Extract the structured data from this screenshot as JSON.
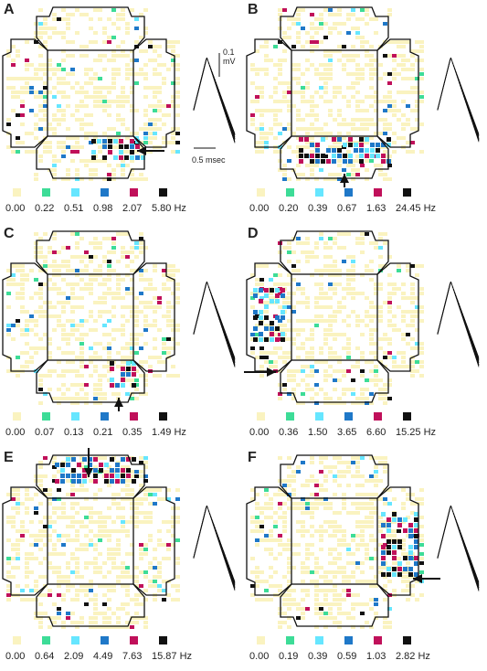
{
  "colors": {
    "bin0": "#faf3c0",
    "bin1": "#3ddc97",
    "bin2": "#66e6ff",
    "bin3": "#1f78c8",
    "bin4": "#c0105a",
    "bin5": "#111111"
  },
  "scalebars": {
    "voltage": "0.1\nmV",
    "time": "0.5 msec"
  },
  "panels": [
    {
      "label": "A",
      "unit": "Hz",
      "values": [
        "0.00",
        "0.22",
        "0.51",
        "0.98",
        "2.07",
        "5.80"
      ],
      "arrow": "left-bottom-right"
    },
    {
      "label": "B",
      "unit": "Hz",
      "values": [
        "0.00",
        "0.20",
        "0.39",
        "0.67",
        "1.63",
        "24.45"
      ],
      "arrow": "up-bottom"
    },
    {
      "label": "C",
      "unit": "Hz",
      "values": [
        "0.00",
        "0.07",
        "0.13",
        "0.21",
        "0.35",
        "1.49"
      ],
      "arrow": "up-bottom-right"
    },
    {
      "label": "D",
      "unit": "Hz",
      "values": [
        "0.00",
        "0.36",
        "1.50",
        "3.65",
        "6.60",
        "15.25"
      ],
      "arrow": "right-left-bottom"
    },
    {
      "label": "E",
      "unit": "Hz",
      "values": [
        "0.00",
        "0.64",
        "2.09",
        "4.49",
        "7.63",
        "15.87"
      ],
      "arrow": "down-top"
    },
    {
      "label": "F",
      "unit": "Hz",
      "values": [
        "0.00",
        "0.19",
        "0.39",
        "0.59",
        "1.03",
        "2.82"
      ],
      "arrow": "left-right-bottom"
    }
  ]
}
